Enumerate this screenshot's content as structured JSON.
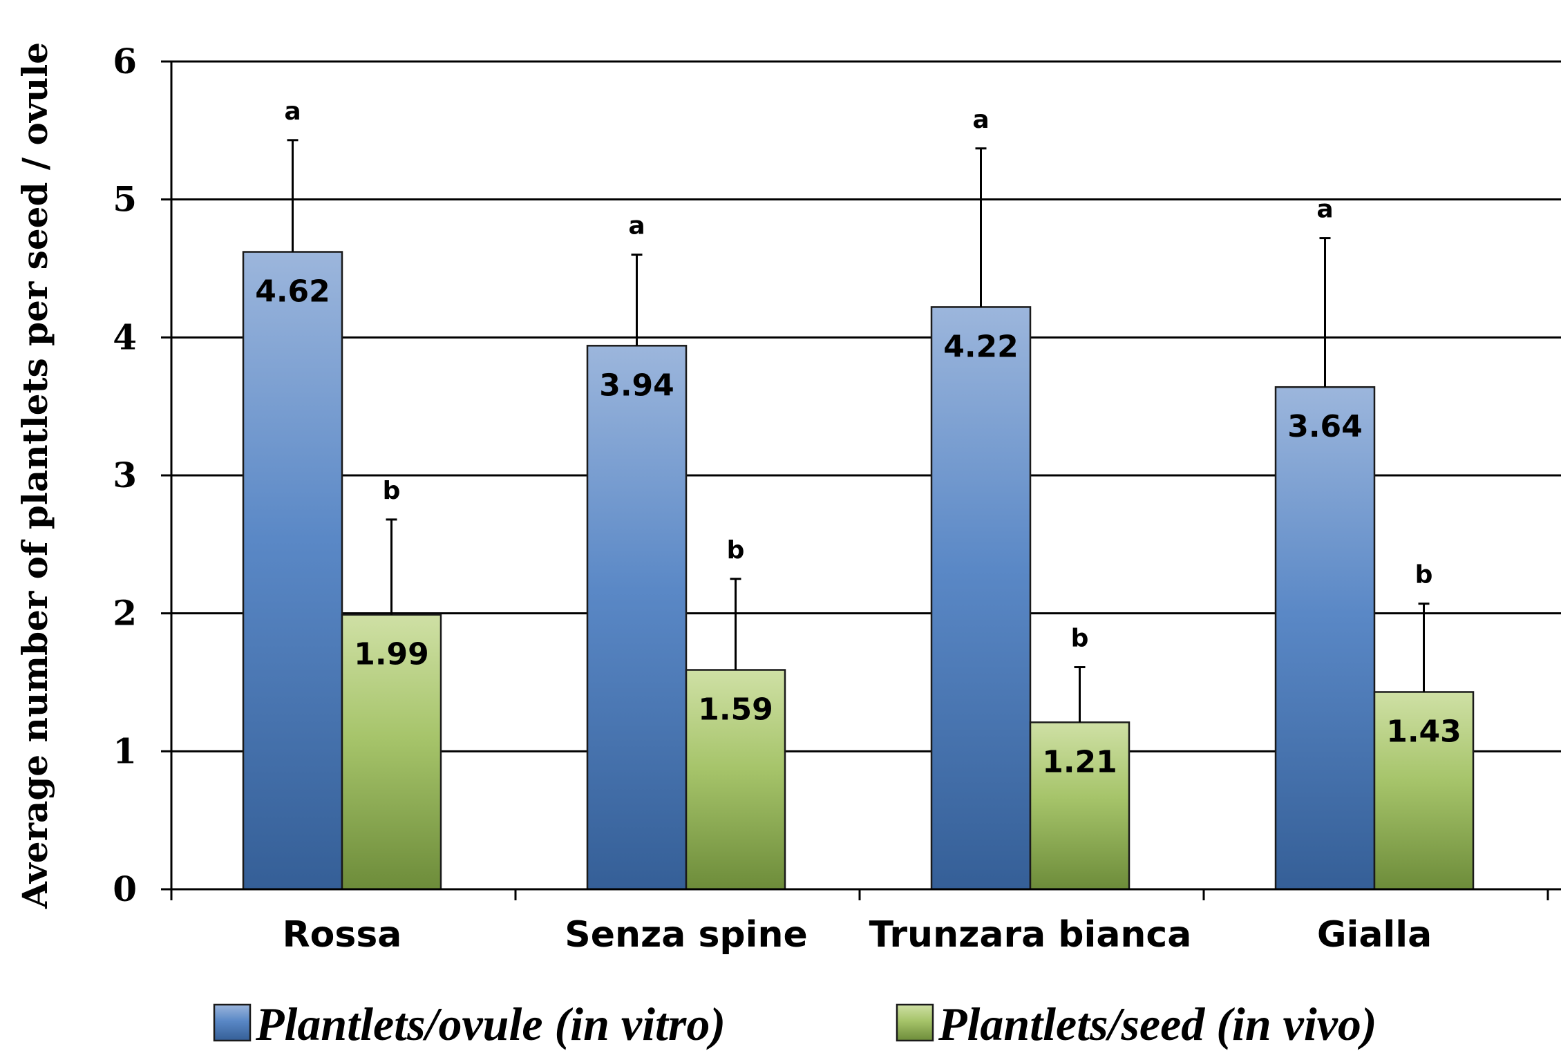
{
  "chart_data": {
    "type": "bar",
    "title": "",
    "xlabel": "",
    "ylabel": "Average number of plantlets per seed / ovule",
    "ylim": [
      0,
      6
    ],
    "yticks": [
      0,
      1,
      2,
      3,
      4,
      5,
      6
    ],
    "grid": true,
    "legend_position": "bottom",
    "categories": [
      "Rossa",
      "Senza spine",
      "Trunzara bianca",
      "Gialla"
    ],
    "series": [
      {
        "name": "Plantlets/ovule (in vitro)",
        "color": "#4f81bd",
        "values": [
          4.62,
          3.94,
          4.22,
          3.64
        ],
        "error_upper": [
          5.43,
          4.6,
          5.37,
          4.72
        ],
        "significance": [
          "a",
          "a",
          "a",
          "a"
        ],
        "value_labels": [
          "4.62",
          "3.94",
          "4.22",
          "3.64"
        ]
      },
      {
        "name": "Plantlets/seed (in vivo)",
        "color": "#9bbb59",
        "values": [
          1.99,
          1.59,
          1.21,
          1.43
        ],
        "error_upper": [
          2.68,
          2.25,
          1.61,
          2.07
        ],
        "significance": [
          "b",
          "b",
          "b",
          "b"
        ],
        "value_labels": [
          "1.99",
          "1.59",
          "1.21",
          "1.43"
        ]
      }
    ]
  }
}
